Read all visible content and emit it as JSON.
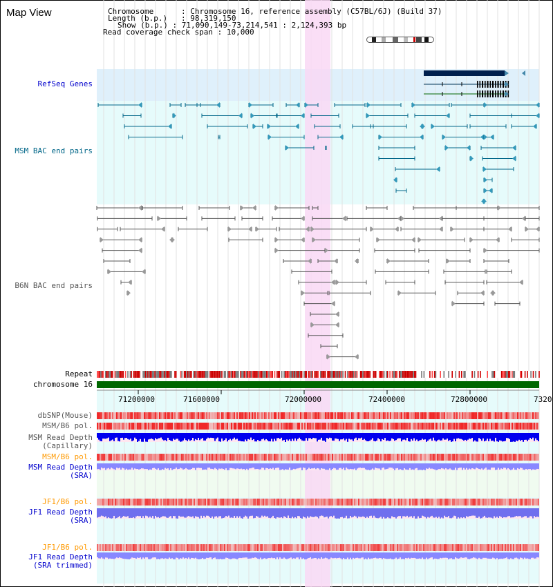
{
  "header": {
    "title": "Map View",
    "chromosome_key": "Chromosome",
    "chromosome_value": "Chromosome 16, reference assembly (C57BL/6J) (Build 37)",
    "length_key": "Length (b.p.)",
    "length_value": "98,319,150",
    "show_key": "Show (b.p.)",
    "show_value": "71,090,149-73,214,541 : 2,124,393 bp",
    "coverage_key": "Read coverage check span",
    "coverage_value": "10,000"
  },
  "tracks": {
    "refseq": "RefSeq Genes",
    "msm_bac": "MSM BAC end pairs",
    "b6n_bac": "B6N BAC end pairs",
    "repeat": "Repeat",
    "chromosome": "chromosome 16",
    "dbsnp": "dbSNP(Mouse)",
    "msm_b6_pol": "MSM/B6 pol.",
    "msm_depth_cap_1": "MSM Read Depth",
    "msm_depth_cap_2": "(Capillary)",
    "msm_b6_pol2": "MSM/B6 pol.",
    "msm_depth_sra_1": "MSM Read Depth",
    "msm_depth_sra_2": "(SRA)",
    "jf1_b6_pol": "JF1/B6 pol.",
    "jf1_depth_sra_1": "JF1 Read Depth",
    "jf1_depth_sra_2": "(SRA)",
    "jf1_b6_pol2": "JF1/B6 pol.",
    "jf1_depth_trim_1": "JF1 Read Depth",
    "jf1_depth_trim_2": "(SRA trimmed)"
  },
  "axis": {
    "ticks": [
      "71200000",
      "71600000",
      "72000000",
      "72400000",
      "72800000",
      "7320"
    ]
  },
  "colors": {
    "label_blue": "#0000cc",
    "label_teal": "#006688",
    "label_orange": "#ff9900",
    "label_gray": "#555555",
    "highlight": "#f9d8f4",
    "refseq_bg": "#dff0fb",
    "msm_bg": "#e6fbfb",
    "chrom_green": "#006600"
  }
}
